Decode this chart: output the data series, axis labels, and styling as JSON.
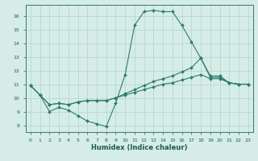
{
  "title": "",
  "xlabel": "Humidex (Indice chaleur)",
  "xlim": [
    -0.5,
    23.5
  ],
  "ylim": [
    7.5,
    16.8
  ],
  "yticks": [
    8,
    9,
    10,
    11,
    12,
    13,
    14,
    15,
    16
  ],
  "xticks": [
    0,
    1,
    2,
    3,
    4,
    5,
    6,
    7,
    8,
    9,
    10,
    11,
    12,
    13,
    14,
    15,
    16,
    17,
    18,
    19,
    20,
    21,
    22,
    23
  ],
  "background_color": "#d6ece6",
  "grid_color": "#b0d5cd",
  "line_color": "#2e7d6e",
  "line1_y": [
    10.9,
    10.2,
    9.0,
    9.3,
    9.1,
    8.7,
    8.3,
    8.1,
    7.9,
    9.6,
    11.7,
    15.3,
    16.3,
    16.4,
    16.3,
    16.3,
    15.3,
    14.1,
    12.9,
    11.6,
    11.6,
    11.1,
    11.0,
    11.0
  ],
  "line2_y": [
    10.9,
    10.2,
    9.5,
    9.6,
    9.5,
    9.7,
    9.8,
    9.8,
    9.8,
    10.0,
    10.3,
    10.6,
    10.9,
    11.2,
    11.4,
    11.6,
    11.9,
    12.2,
    12.9,
    11.5,
    11.5,
    11.1,
    11.0,
    11.0
  ],
  "line3_y": [
    10.9,
    10.2,
    9.5,
    9.6,
    9.5,
    9.7,
    9.8,
    9.8,
    9.8,
    10.0,
    10.2,
    10.4,
    10.6,
    10.8,
    11.0,
    11.1,
    11.3,
    11.5,
    11.7,
    11.4,
    11.4,
    11.1,
    11.0,
    11.0
  ]
}
